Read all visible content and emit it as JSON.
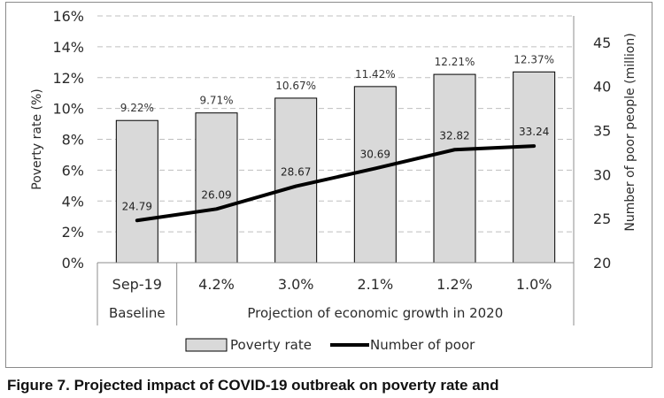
{
  "chart_data": {
    "type": "bar+line",
    "categories": [
      "Sep-19",
      "4.2%",
      "3.0%",
      "2.1%",
      "1.2%",
      "1.0%"
    ],
    "groups": [
      {
        "label": "Baseline",
        "span": 1
      },
      {
        "label": "Projection of economic growth in 2020",
        "span": 5
      }
    ],
    "series": [
      {
        "name": "Poverty rate",
        "type": "bar",
        "axis": "left",
        "values": [
          9.22,
          9.71,
          10.67,
          11.42,
          12.21,
          12.37
        ],
        "labels": [
          "9.22%",
          "9.71%",
          "10.67%",
          "11.42%",
          "12.21%",
          "12.37%"
        ],
        "color": "#d9d9d9"
      },
      {
        "name": "Number of poor",
        "type": "line",
        "axis": "right",
        "values": [
          24.79,
          26.09,
          28.67,
          30.69,
          32.82,
          33.24
        ],
        "labels": [
          "24.79",
          "26.09",
          "28.67",
          "30.69",
          "32.82",
          "33.24"
        ],
        "color": "#000000"
      }
    ],
    "y_left": {
      "label": "Poverty rate (%)",
      "range": [
        0,
        16
      ],
      "ticks": [
        0,
        2,
        4,
        6,
        8,
        10,
        12,
        14,
        16
      ],
      "tick_labels": [
        "0%",
        "2%",
        "4%",
        "6%",
        "8%",
        "10%",
        "12%",
        "14%",
        "16%"
      ]
    },
    "y_right": {
      "label": "Number of poor people (million)",
      "range": [
        20,
        48
      ],
      "ticks": [
        20,
        25,
        30,
        35,
        40,
        45
      ],
      "tick_labels": [
        "20",
        "25",
        "30",
        "35",
        "40",
        "45"
      ]
    },
    "grid": true,
    "legend_position": "bottom",
    "legend": [
      "Poverty rate",
      "Number of poor"
    ]
  },
  "caption": "Figure 7. Projected impact of COVID-19 outbreak on poverty rate and"
}
